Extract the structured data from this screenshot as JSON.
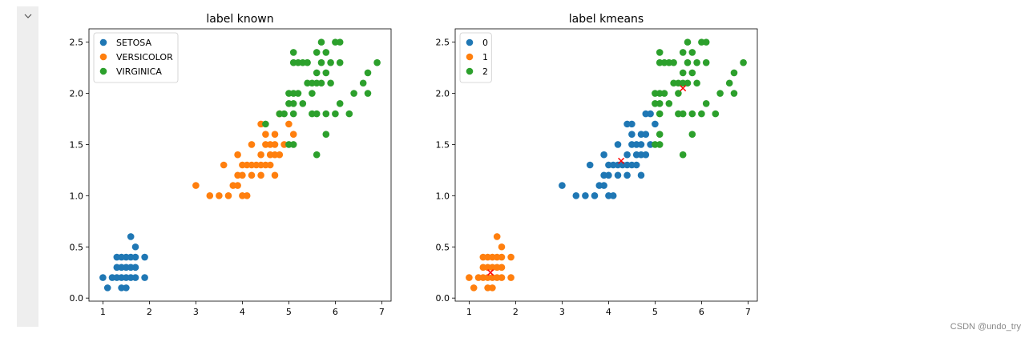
{
  "watermark": "CSDN @undo_try",
  "icons": {
    "collapse": "chevron-down-icon"
  },
  "chart_data": [
    {
      "type": "scatter",
      "title": "label known",
      "xlabel": "",
      "ylabel": "",
      "xlim": [
        0.7,
        7.2
      ],
      "ylim": [
        -0.03,
        2.63
      ],
      "xticks": [
        1,
        2,
        3,
        4,
        5,
        6,
        7
      ],
      "yticks": [
        0.0,
        0.5,
        1.0,
        1.5,
        2.0,
        2.5
      ],
      "legend": "top-left",
      "series": [
        {
          "name": "SETOSA",
          "color": "#1f77b4",
          "points": [
            [
              1.0,
              0.2
            ],
            [
              1.1,
              0.1
            ],
            [
              1.2,
              0.2
            ],
            [
              1.3,
              0.2
            ],
            [
              1.3,
              0.3
            ],
            [
              1.3,
              0.4
            ],
            [
              1.4,
              0.2
            ],
            [
              1.4,
              0.3
            ],
            [
              1.4,
              0.1
            ],
            [
              1.5,
              0.2
            ],
            [
              1.5,
              0.1
            ],
            [
              1.5,
              0.4
            ],
            [
              1.5,
              0.3
            ],
            [
              1.6,
              0.2
            ],
            [
              1.6,
              0.4
            ],
            [
              1.6,
              0.6
            ],
            [
              1.7,
              0.2
            ],
            [
              1.7,
              0.4
            ],
            [
              1.7,
              0.3
            ],
            [
              1.7,
              0.5
            ],
            [
              1.9,
              0.2
            ],
            [
              1.9,
              0.4
            ],
            [
              1.6,
              0.3
            ],
            [
              1.4,
              0.4
            ]
          ]
        },
        {
          "name": "VERSICOLOR",
          "color": "#ff7f0e",
          "points": [
            [
              3.0,
              1.1
            ],
            [
              3.3,
              1.0
            ],
            [
              3.5,
              1.0
            ],
            [
              3.6,
              1.3
            ],
            [
              3.7,
              1.0
            ],
            [
              3.8,
              1.1
            ],
            [
              3.9,
              1.1
            ],
            [
              3.9,
              1.2
            ],
            [
              3.9,
              1.4
            ],
            [
              4.0,
              1.0
            ],
            [
              4.0,
              1.2
            ],
            [
              4.0,
              1.3
            ],
            [
              4.1,
              1.0
            ],
            [
              4.1,
              1.3
            ],
            [
              4.2,
              1.2
            ],
            [
              4.2,
              1.3
            ],
            [
              4.2,
              1.5
            ],
            [
              4.3,
              1.3
            ],
            [
              4.4,
              1.2
            ],
            [
              4.4,
              1.3
            ],
            [
              4.4,
              1.4
            ],
            [
              4.5,
              1.3
            ],
            [
              4.5,
              1.5
            ],
            [
              4.6,
              1.3
            ],
            [
              4.6,
              1.4
            ],
            [
              4.6,
              1.5
            ],
            [
              4.7,
              1.2
            ],
            [
              4.7,
              1.4
            ],
            [
              4.7,
              1.5
            ],
            [
              4.7,
              1.6
            ],
            [
              4.8,
              1.4
            ],
            [
              4.8,
              1.8
            ],
            [
              4.9,
              1.5
            ],
            [
              5.0,
              1.7
            ],
            [
              5.1,
              1.6
            ],
            [
              4.5,
              1.6
            ],
            [
              4.4,
              1.7
            ]
          ]
        },
        {
          "name": "VIRGINICA",
          "color": "#2ca02c",
          "points": [
            [
              4.5,
              1.7
            ],
            [
              4.8,
              1.8
            ],
            [
              4.9,
              1.8
            ],
            [
              5.0,
              1.5
            ],
            [
              5.0,
              2.0
            ],
            [
              5.0,
              1.9
            ],
            [
              5.1,
              1.5
            ],
            [
              5.1,
              1.8
            ],
            [
              5.1,
              1.9
            ],
            [
              5.1,
              2.0
            ],
            [
              5.1,
              2.3
            ],
            [
              5.1,
              2.4
            ],
            [
              5.2,
              2.0
            ],
            [
              5.2,
              2.3
            ],
            [
              5.3,
              1.9
            ],
            [
              5.3,
              2.3
            ],
            [
              5.4,
              2.1
            ],
            [
              5.4,
              2.3
            ],
            [
              5.5,
              1.8
            ],
            [
              5.5,
              2.1
            ],
            [
              5.6,
              1.4
            ],
            [
              5.6,
              1.8
            ],
            [
              5.6,
              2.1
            ],
            [
              5.6,
              2.2
            ],
            [
              5.6,
              2.4
            ],
            [
              5.7,
              2.1
            ],
            [
              5.7,
              2.3
            ],
            [
              5.7,
              2.5
            ],
            [
              5.8,
              1.6
            ],
            [
              5.8,
              1.8
            ],
            [
              5.8,
              2.2
            ],
            [
              5.9,
              2.1
            ],
            [
              5.9,
              2.3
            ],
            [
              6.0,
              1.8
            ],
            [
              6.0,
              2.5
            ],
            [
              6.1,
              1.9
            ],
            [
              6.1,
              2.3
            ],
            [
              6.1,
              2.5
            ],
            [
              6.3,
              1.8
            ],
            [
              6.4,
              2.0
            ],
            [
              6.6,
              2.1
            ],
            [
              6.7,
              2.0
            ],
            [
              6.7,
              2.2
            ],
            [
              6.9,
              2.3
            ],
            [
              5.8,
              2.4
            ],
            [
              5.5,
              2.0
            ]
          ]
        }
      ]
    },
    {
      "type": "scatter",
      "title": "label kmeans",
      "xlabel": "",
      "ylabel": "",
      "xlim": [
        0.7,
        7.2
      ],
      "ylim": [
        -0.03,
        2.63
      ],
      "xticks": [
        1,
        2,
        3,
        4,
        5,
        6,
        7
      ],
      "yticks": [
        0.0,
        0.5,
        1.0,
        1.5,
        2.0,
        2.5
      ],
      "legend": "top-left",
      "series": [
        {
          "name": "0",
          "color": "#1f77b4",
          "points": [
            [
              3.0,
              1.1
            ],
            [
              3.3,
              1.0
            ],
            [
              3.5,
              1.0
            ],
            [
              3.6,
              1.3
            ],
            [
              3.7,
              1.0
            ],
            [
              3.8,
              1.1
            ],
            [
              3.9,
              1.1
            ],
            [
              3.9,
              1.2
            ],
            [
              3.9,
              1.4
            ],
            [
              4.0,
              1.0
            ],
            [
              4.0,
              1.2
            ],
            [
              4.0,
              1.3
            ],
            [
              4.1,
              1.0
            ],
            [
              4.1,
              1.3
            ],
            [
              4.2,
              1.2
            ],
            [
              4.2,
              1.3
            ],
            [
              4.2,
              1.5
            ],
            [
              4.3,
              1.3
            ],
            [
              4.4,
              1.2
            ],
            [
              4.4,
              1.3
            ],
            [
              4.4,
              1.4
            ],
            [
              4.5,
              1.3
            ],
            [
              4.5,
              1.5
            ],
            [
              4.5,
              1.7
            ],
            [
              4.6,
              1.3
            ],
            [
              4.6,
              1.4
            ],
            [
              4.6,
              1.5
            ],
            [
              4.7,
              1.2
            ],
            [
              4.7,
              1.4
            ],
            [
              4.7,
              1.5
            ],
            [
              4.7,
              1.6
            ],
            [
              4.8,
              1.4
            ],
            [
              4.8,
              1.8
            ],
            [
              4.9,
              1.5
            ],
            [
              4.9,
              1.8
            ],
            [
              5.0,
              1.7
            ],
            [
              4.5,
              1.6
            ],
            [
              4.4,
              1.7
            ],
            [
              4.8,
              1.6
            ]
          ]
        },
        {
          "name": "1",
          "color": "#ff7f0e",
          "points": [
            [
              1.0,
              0.2
            ],
            [
              1.1,
              0.1
            ],
            [
              1.2,
              0.2
            ],
            [
              1.3,
              0.2
            ],
            [
              1.3,
              0.3
            ],
            [
              1.3,
              0.4
            ],
            [
              1.4,
              0.2
            ],
            [
              1.4,
              0.3
            ],
            [
              1.4,
              0.1
            ],
            [
              1.5,
              0.2
            ],
            [
              1.5,
              0.1
            ],
            [
              1.5,
              0.4
            ],
            [
              1.5,
              0.3
            ],
            [
              1.6,
              0.2
            ],
            [
              1.6,
              0.4
            ],
            [
              1.6,
              0.6
            ],
            [
              1.7,
              0.2
            ],
            [
              1.7,
              0.4
            ],
            [
              1.7,
              0.3
            ],
            [
              1.7,
              0.5
            ],
            [
              1.9,
              0.2
            ],
            [
              1.9,
              0.4
            ],
            [
              1.6,
              0.3
            ],
            [
              1.4,
              0.4
            ]
          ]
        },
        {
          "name": "2",
          "color": "#2ca02c",
          "points": [
            [
              5.0,
              1.5
            ],
            [
              5.0,
              2.0
            ],
            [
              5.0,
              1.9
            ],
            [
              5.1,
              1.5
            ],
            [
              5.1,
              1.6
            ],
            [
              5.1,
              1.8
            ],
            [
              5.1,
              1.9
            ],
            [
              5.1,
              2.0
            ],
            [
              5.1,
              2.3
            ],
            [
              5.1,
              2.4
            ],
            [
              5.2,
              2.0
            ],
            [
              5.2,
              2.3
            ],
            [
              5.3,
              1.9
            ],
            [
              5.3,
              2.3
            ],
            [
              5.4,
              2.1
            ],
            [
              5.4,
              2.3
            ],
            [
              5.5,
              1.8
            ],
            [
              5.5,
              2.1
            ],
            [
              5.6,
              1.4
            ],
            [
              5.6,
              1.8
            ],
            [
              5.6,
              2.1
            ],
            [
              5.6,
              2.2
            ],
            [
              5.6,
              2.4
            ],
            [
              5.7,
              2.1
            ],
            [
              5.7,
              2.3
            ],
            [
              5.7,
              2.5
            ],
            [
              5.8,
              1.6
            ],
            [
              5.8,
              1.8
            ],
            [
              5.8,
              2.2
            ],
            [
              5.9,
              2.1
            ],
            [
              5.9,
              2.3
            ],
            [
              6.0,
              1.8
            ],
            [
              6.0,
              2.5
            ],
            [
              6.1,
              1.9
            ],
            [
              6.1,
              2.3
            ],
            [
              6.1,
              2.5
            ],
            [
              6.3,
              1.8
            ],
            [
              6.4,
              2.0
            ],
            [
              6.6,
              2.1
            ],
            [
              6.7,
              2.0
            ],
            [
              6.7,
              2.2
            ],
            [
              6.9,
              2.3
            ],
            [
              5.8,
              2.4
            ],
            [
              5.5,
              2.0
            ]
          ]
        }
      ],
      "centroids": {
        "color": "#ff0000",
        "marker": "x",
        "points": [
          [
            4.27,
            1.34
          ],
          [
            1.46,
            0.25
          ],
          [
            5.6,
            2.05
          ]
        ]
      }
    }
  ]
}
